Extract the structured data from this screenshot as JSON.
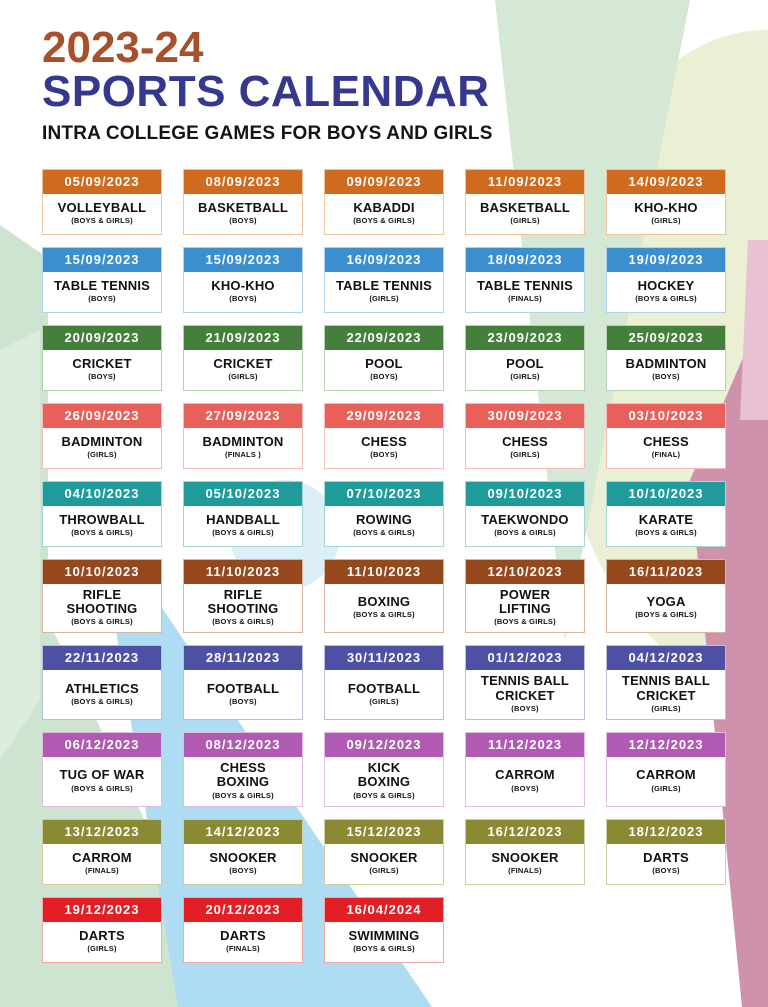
{
  "header": {
    "year": "2023-24",
    "title": "SPORTS CALENDAR",
    "subtitle": "INTRA COLLEGE GAMES FOR BOYS AND GIRLS",
    "year_color": "#a8502c",
    "title_color": "#34388f"
  },
  "rows": [
    {
      "header_color": "#d06a1f",
      "border_color": "#ecc49e",
      "cards": [
        {
          "date": "05/09/2023",
          "sport": "VOLLEYBALL",
          "category": "(BOYS & GIRLS)"
        },
        {
          "date": "08/09/2023",
          "sport": "BASKETBALL",
          "category": "(BOYS)"
        },
        {
          "date": "09/09/2023",
          "sport": "KABADDI",
          "category": "(BOYS & GIRLS)"
        },
        {
          "date": "11/09/2023",
          "sport": "BASKETBALL",
          "category": "(GIRLS)"
        },
        {
          "date": "14/09/2023",
          "sport": "KHO-KHO",
          "category": "(GIRLS)"
        }
      ]
    },
    {
      "header_color": "#3b8fce",
      "border_color": "#afd3ed",
      "cards": [
        {
          "date": "15/09/2023",
          "sport": "TABLE TENNIS",
          "category": "(BOYS)"
        },
        {
          "date": "15/09/2023",
          "sport": "KHO-KHO",
          "category": "(BOYS)"
        },
        {
          "date": "16/09/2023",
          "sport": "TABLE TENNIS",
          "category": "(GIRLS)"
        },
        {
          "date": "18/09/2023",
          "sport": "TABLE TENNIS",
          "category": "(FINALS)"
        },
        {
          "date": "19/09/2023",
          "sport": "HOCKEY",
          "category": "(BOYS & GIRLS)"
        }
      ]
    },
    {
      "header_color": "#44803c",
      "border_color": "#b6d2b2",
      "cards": [
        {
          "date": "20/09/2023",
          "sport": "CRICKET",
          "category": "(BOYS)"
        },
        {
          "date": "21/09/2023",
          "sport": "CRICKET",
          "category": "(GIRLS)"
        },
        {
          "date": "22/09/2023",
          "sport": "POOL",
          "category": "(BOYS)"
        },
        {
          "date": "23/09/2023",
          "sport": "POOL",
          "category": "(GIRLS)"
        },
        {
          "date": "25/09/2023",
          "sport": "BADMINTON",
          "category": "(BOYS)"
        }
      ]
    },
    {
      "header_color": "#e9605a",
      "border_color": "#f5bdba",
      "cards": [
        {
          "date": "26/09/2023",
          "sport": "BADMINTON",
          "category": "(GIRLS)"
        },
        {
          "date": "27/09/2023",
          "sport": "BADMINTON",
          "category": "(FINALS )"
        },
        {
          "date": "29/09/2023",
          "sport": "CHESS",
          "category": "(BOYS)"
        },
        {
          "date": "30/09/2023",
          "sport": "CHESS",
          "category": "(GIRLS)"
        },
        {
          "date": "03/10/2023",
          "sport": "CHESS",
          "category": "(FINAL)"
        }
      ]
    },
    {
      "header_color": "#1f9b9c",
      "border_color": "#a5d6d6",
      "cards": [
        {
          "date": "04/10/2023",
          "sport": "THROWBALL",
          "category": "(BOYS & GIRLS)"
        },
        {
          "date": "05/10/2023",
          "sport": "HANDBALL",
          "category": "(BOYS & GIRLS)"
        },
        {
          "date": "07/10/2023",
          "sport": "ROWING",
          "category": "(BOYS & GIRLS)"
        },
        {
          "date": "09/10/2023",
          "sport": "TAEKWONDO",
          "category": "(BOYS & GIRLS)"
        },
        {
          "date": "10/10/2023",
          "sport": "KARATE",
          "category": "(BOYS & GIRLS)"
        }
      ]
    },
    {
      "header_color": "#96481d",
      "border_color": "#d9b49e",
      "cards": [
        {
          "date": "10/10/2023",
          "sport": "RIFLE\nSHOOTING",
          "category": "(BOYS & GIRLS)"
        },
        {
          "date": "11/10/2023",
          "sport": "RIFLE\nSHOOTING",
          "category": "(BOYS & GIRLS)"
        },
        {
          "date": "11/10/2023",
          "sport": "BOXING",
          "category": "(BOYS & GIRLS)"
        },
        {
          "date": "12/10/2023",
          "sport": "POWER\nLIFTING",
          "category": "(BOYS & GIRLS)"
        },
        {
          "date": "16/11/2023",
          "sport": "YOGA",
          "category": "(BOYS & GIRLS)"
        }
      ]
    },
    {
      "header_color": "#4e51a3",
      "border_color": "#bcbddd",
      "cards": [
        {
          "date": "22/11/2023",
          "sport": "ATHLETICS",
          "category": "(BOYS & GIRLS)"
        },
        {
          "date": "28/11/2023",
          "sport": "FOOTBALL",
          "category": "(BOYS)"
        },
        {
          "date": "30/11/2023",
          "sport": "FOOTBALL",
          "category": "(GIRLS)"
        },
        {
          "date": "01/12/2023",
          "sport": "TENNIS BALL\nCRICKET",
          "category": "(BOYS)"
        },
        {
          "date": "04/12/2023",
          "sport": "TENNIS BALL\nCRICKET",
          "category": "(GIRLS)"
        }
      ]
    },
    {
      "header_color": "#b15ab3",
      "border_color": "#dfbce0",
      "cards": [
        {
          "date": "06/12/2023",
          "sport": "TUG OF WAR",
          "category": "(BOYS & GIRLS)"
        },
        {
          "date": "08/12/2023",
          "sport": "CHESS\nBOXING",
          "category": "(BOYS & GIRLS)"
        },
        {
          "date": "09/12/2023",
          "sport": "KICK\nBOXING",
          "category": "(BOYS & GIRLS)"
        },
        {
          "date": "11/12/2023",
          "sport": "CARROM",
          "category": "(BOYS)"
        },
        {
          "date": "12/12/2023",
          "sport": "CARROM",
          "category": "(GIRLS)"
        }
      ]
    },
    {
      "header_color": "#8a8a35",
      "border_color": "#cfcfa3",
      "cards": [
        {
          "date": "13/12/2023",
          "sport": "CARROM",
          "category": "(FINALS)"
        },
        {
          "date": "14/12/2023",
          "sport": "SNOOKER",
          "category": "(BOYS)"
        },
        {
          "date": "15/12/2023",
          "sport": "SNOOKER",
          "category": "(GIRLS)"
        },
        {
          "date": "16/12/2023",
          "sport": "SNOOKER",
          "category": "(FINALS)"
        },
        {
          "date": "18/12/2023",
          "sport": "DARTS",
          "category": "(BOYS)"
        }
      ]
    },
    {
      "header_color": "#e31e24",
      "border_color": "#f3a7a9",
      "cards": [
        {
          "date": "19/12/2023",
          "sport": "DARTS",
          "category": "(GIRLS)"
        },
        {
          "date": "20/12/2023",
          "sport": "DARTS",
          "category": "(FINALS)"
        },
        {
          "date": "16/04/2024",
          "sport": "SWIMMING",
          "category": "(BOYS & GIRLS)"
        }
      ]
    }
  ]
}
